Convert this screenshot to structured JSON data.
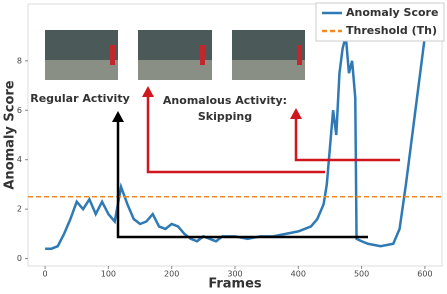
{
  "chart_data": {
    "type": "line",
    "xlabel": "Frames",
    "ylabel": "Anomaly Score",
    "x": [
      0,
      10,
      20,
      30,
      40,
      50,
      60,
      70,
      80,
      90,
      100,
      110,
      120,
      130,
      140,
      150,
      160,
      170,
      180,
      190,
      200,
      210,
      220,
      230,
      240,
      250,
      260,
      270,
      280,
      300,
      320,
      340,
      360,
      380,
      400,
      420,
      430,
      440,
      445,
      450,
      455,
      460,
      465,
      470,
      475,
      480,
      485,
      490,
      492,
      500,
      510,
      530,
      550,
      560,
      570,
      580,
      590,
      600,
      605
    ],
    "series": [
      {
        "name": "Anomaly Score",
        "color": "#2f7ab5",
        "values": [
          0.4,
          0.4,
          0.5,
          1.0,
          1.6,
          2.3,
          2.0,
          2.4,
          1.8,
          2.3,
          1.8,
          1.5,
          2.9,
          2.2,
          1.6,
          1.4,
          1.5,
          1.8,
          1.3,
          1.2,
          1.4,
          1.3,
          1.0,
          0.8,
          0.7,
          0.9,
          0.8,
          0.7,
          0.9,
          0.9,
          0.8,
          0.9,
          0.9,
          1.0,
          1.1,
          1.3,
          1.6,
          2.2,
          3.0,
          4.5,
          6.0,
          5.0,
          7.5,
          8.5,
          9.0,
          7.5,
          8.0,
          6.5,
          0.8,
          0.7,
          0.6,
          0.5,
          0.6,
          1.2,
          3.0,
          5.0,
          7.0,
          9.0,
          10.3
        ]
      },
      {
        "name": "Threshold (Th)",
        "color": "#f08a24",
        "threshold": 2.5
      }
    ],
    "annotations": [
      "Regular Activity",
      "Anomalous Activity:",
      "Skipping"
    ],
    "xlim": [
      -27,
      627
    ],
    "ylim": [
      -0.3,
      10.3
    ],
    "xticks": [
      0,
      100,
      200,
      300,
      400,
      500,
      600
    ],
    "yticks": [
      0,
      2,
      4,
      6,
      8
    ],
    "legend": "upper right"
  }
}
